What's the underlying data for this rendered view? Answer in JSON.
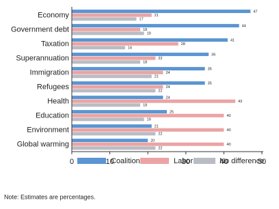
{
  "chart_data": {
    "type": "bar",
    "orientation": "horizontal",
    "categories": [
      "Economy",
      "Government debt",
      "Taxation",
      "Superannuation",
      "Immigration",
      "Refugees",
      "Health",
      "Education",
      "Environment",
      "Global warming"
    ],
    "series": [
      {
        "name": "Coalition",
        "color": "#5b95d2",
        "values": [
          47,
          44,
          41,
          36,
          35,
          35,
          24,
          25,
          21,
          20
        ]
      },
      {
        "name": "Labor",
        "color": "#eba3a3",
        "values": [
          21,
          18,
          28,
          22,
          24,
          24,
          43,
          40,
          40,
          40
        ]
      },
      {
        "name": "No difference",
        "color": "#b9bcc3",
        "values": [
          17,
          19,
          14,
          18,
          21,
          22,
          18,
          19,
          22,
          22
        ]
      }
    ],
    "xlim": [
      0,
      50
    ],
    "xticks": [
      0,
      10,
      20,
      30,
      40,
      50
    ],
    "legend": "bottom",
    "note": "Note: Estimates are percentages."
  }
}
